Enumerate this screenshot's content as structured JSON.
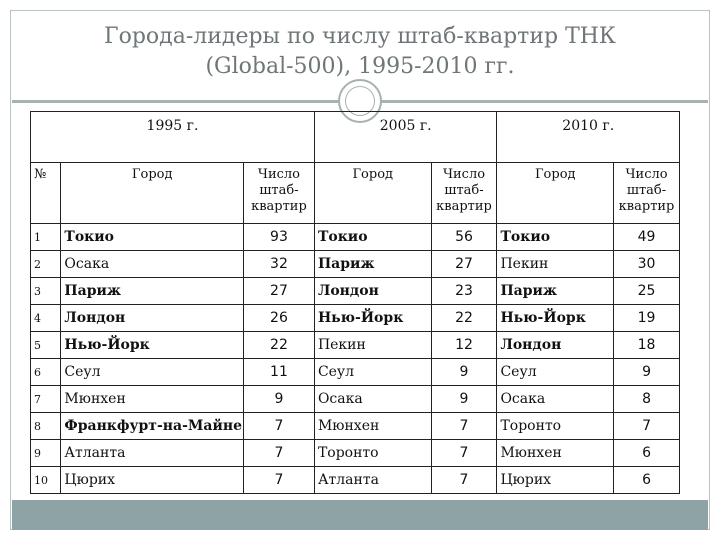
{
  "title": {
    "line1": "Города-лидеры по числу штаб-квартир ТНК",
    "line2": "(Global-500), 1995-2010 гг."
  },
  "table": {
    "years": [
      "1995 г.",
      "2005 г.",
      "2010 г."
    ],
    "col_no": "№",
    "col_city": "Город",
    "col_count": "Число штаб-квартир",
    "rows": [
      {
        "n": "1",
        "c1995": "Токио",
        "v1995": "93",
        "c2005": "Токио",
        "v2005": "56",
        "c2010": "Токио",
        "v2010": "49"
      },
      {
        "n": "2",
        "c1995": "Осака",
        "v1995": "32",
        "c2005": "Париж",
        "v2005": "27",
        "c2010": "Пекин",
        "v2010": "30"
      },
      {
        "n": "3",
        "c1995": "Париж",
        "v1995": "27",
        "c2005": "Лондон",
        "v2005": "23",
        "c2010": "Париж",
        "v2010": "25"
      },
      {
        "n": "4",
        "c1995": "Лондон",
        "v1995": "26",
        "c2005": "Нью-Йорк",
        "v2005": "22",
        "c2010": "Нью-Йорк",
        "v2010": "19"
      },
      {
        "n": "5",
        "c1995": "Нью-Йорк",
        "v1995": "22",
        "c2005": "Пекин",
        "v2005": "12",
        "c2010": "Лондон",
        "v2010": "18"
      },
      {
        "n": "6",
        "c1995": "Сеул",
        "v1995": "11",
        "c2005": "Сеул",
        "v2005": "9",
        "c2010": "Сеул",
        "v2010": "9"
      },
      {
        "n": "7",
        "c1995": "Мюнхен",
        "v1995": "9",
        "c2005": "Осака",
        "v2005": "9",
        "c2010": "Осака",
        "v2010": "8"
      },
      {
        "n": "8",
        "c1995": "Франкфурт-на-Майне",
        "v1995": "7",
        "c2005": "Мюнхен",
        "v2005": "7",
        "c2010": "Торонто",
        "v2010": "7"
      },
      {
        "n": "9",
        "c1995": "Атланта",
        "v1995": "7",
        "c2005": "Торонто",
        "v2005": "7",
        "c2010": "Мюнхен",
        "v2010": "6"
      },
      {
        "n": "10",
        "c1995": "Цюрих",
        "v1995": "7",
        "c2005": "Атланта",
        "v2005": "7",
        "c2010": "Цюрих",
        "v2010": "6"
      }
    ]
  },
  "colors": {
    "title": "#6e7677",
    "accent_bar": "#8da3a6",
    "rule": "#a7b1b2"
  }
}
